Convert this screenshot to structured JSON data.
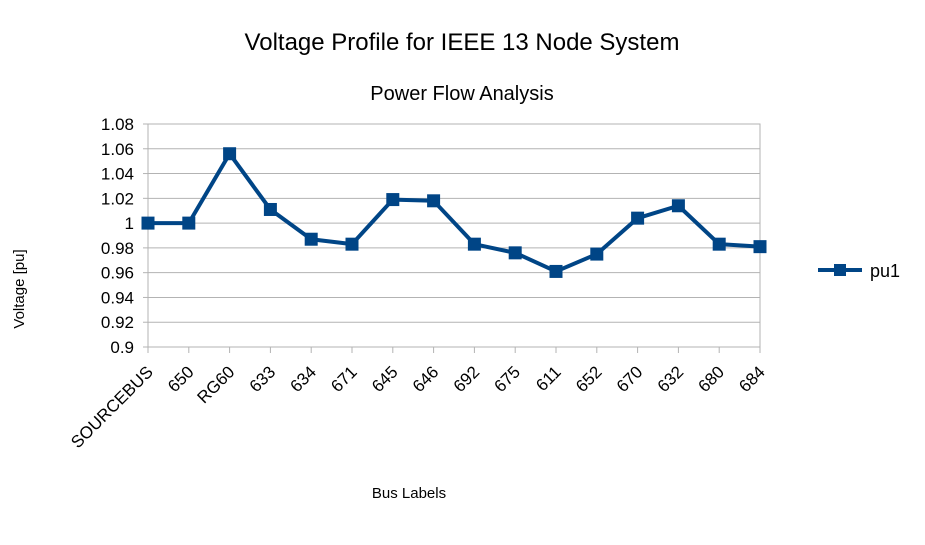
{
  "chart_data": {
    "type": "line",
    "title": "Voltage Profile for IEEE 13 Node System",
    "subtitle": "Power Flow Analysis",
    "xlabel": "Bus Labels",
    "ylabel": "Voltage [pu]",
    "ylim": [
      0.9,
      1.08
    ],
    "yticks": [
      "0.9",
      "0.92",
      "0.94",
      "0.96",
      "0.98",
      "1",
      "1.02",
      "1.04",
      "1.06",
      "1.08"
    ],
    "grid": true,
    "legend_position": "right",
    "categories": [
      "SOURCEBUS",
      "650",
      "RG60",
      "633",
      "634",
      "671",
      "645",
      "646",
      "692",
      "675",
      "611",
      "652",
      "670",
      "632",
      "680",
      "684"
    ],
    "series": [
      {
        "name": "pu1",
        "color": "#004586",
        "marker": "square",
        "values": [
          1.0,
          1.0,
          1.056,
          1.011,
          0.987,
          0.983,
          1.019,
          1.018,
          0.983,
          0.976,
          0.961,
          0.975,
          1.004,
          1.014,
          0.983,
          0.981
        ]
      }
    ]
  }
}
